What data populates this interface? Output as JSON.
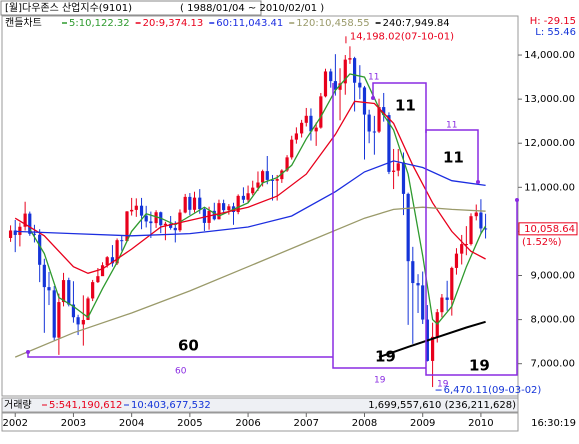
{
  "header": {
    "title": "[월]다우존스 산업지수(9101)",
    "range": "( 1988/01/04 ~ 2010/02/01 )",
    "h": "H: -29.15",
    "l": "L: 55.46",
    "time": "16:30:19"
  },
  "chart_data": {
    "type": "candlestick",
    "label": "캔들차트",
    "x": [
      2001.92,
      2002.0,
      2002.08,
      2002.17,
      2002.25,
      2002.33,
      2002.42,
      2002.5,
      2002.58,
      2002.67,
      2002.75,
      2002.83,
      2002.92,
      2003.0,
      2003.08,
      2003.17,
      2003.25,
      2003.33,
      2003.42,
      2003.5,
      2003.58,
      2003.67,
      2003.75,
      2003.83,
      2003.92,
      2004.0,
      2004.08,
      2004.17,
      2004.25,
      2004.33,
      2004.42,
      2004.5,
      2004.58,
      2004.67,
      2004.75,
      2004.83,
      2004.92,
      2005.0,
      2005.08,
      2005.17,
      2005.25,
      2005.33,
      2005.42,
      2005.5,
      2005.58,
      2005.67,
      2005.75,
      2005.83,
      2005.92,
      2006.0,
      2006.08,
      2006.17,
      2006.25,
      2006.33,
      2006.42,
      2006.5,
      2006.58,
      2006.67,
      2006.75,
      2006.83,
      2006.92,
      2007.0,
      2007.08,
      2007.17,
      2007.25,
      2007.33,
      2007.42,
      2007.5,
      2007.58,
      2007.67,
      2007.75,
      2007.83,
      2007.92,
      2008.0,
      2008.08,
      2008.17,
      2008.25,
      2008.33,
      2008.42,
      2008.5,
      2008.58,
      2008.67,
      2008.75,
      2008.83,
      2008.92,
      2009.0,
      2009.08,
      2009.17,
      2009.25,
      2009.33,
      2009.42,
      2009.5,
      2009.58,
      2009.67,
      2009.75,
      2009.83,
      2009.92,
      2010.0,
      2010.08
    ],
    "open": [
      9851,
      10021,
      9920,
      10106,
      10404,
      9946,
      9925,
      9243,
      8737,
      8664,
      7592,
      8397,
      8896,
      8342,
      8054,
      7891,
      7992,
      8480,
      8850,
      8985,
      9233,
      9415,
      9275,
      9801,
      9782,
      10454,
      10488,
      10583,
      10358,
      10226,
      10188,
      10435,
      10140,
      10174,
      10080,
      10027,
      10428,
      10783,
      10490,
      10766,
      10504,
      10193,
      10467,
      10275,
      10641,
      10482,
      10569,
      10440,
      10806,
      10718,
      10865,
      10993,
      11109,
      11367,
      11168,
      11150,
      11186,
      11381,
      11679,
      12081,
      12222,
      12463,
      12622,
      12269,
      12354,
      13063,
      13628,
      13409,
      13212,
      13358,
      13896,
      13930,
      13372,
      13265,
      12650,
      12266,
      12263,
      12820,
      12638,
      11350,
      11378,
      11544,
      10851,
      9325,
      8829,
      8776,
      8001,
      7063,
      7609,
      8168,
      8500,
      8447,
      9172,
      9496,
      9712,
      9713,
      10345,
      10428,
      10067
    ],
    "high": [
      10137,
      10260,
      10200,
      10673,
      10450,
      10150,
      10050,
      9380,
      9080,
      8760,
      8590,
      9060,
      8950,
      8870,
      8110,
      8550,
      8520,
      8900,
      9170,
      9300,
      9440,
      9690,
      9840,
      9900,
      10460,
      10760,
      10750,
      10760,
      10580,
      10450,
      10480,
      10450,
      10220,
      10350,
      10230,
      10500,
      10850,
      10870,
      10900,
      10960,
      10540,
      10560,
      10650,
      10720,
      10720,
      10620,
      10650,
      10840,
      11000,
      11040,
      11150,
      11360,
      11400,
      11710,
      11280,
      11280,
      11410,
      11730,
      12170,
      12360,
      12530,
      12800,
      12790,
      12470,
      13140,
      13690,
      13690,
      14020,
      13700,
      14000,
      14198.02,
      13960,
      13770,
      13300,
      12760,
      12620,
      13010,
      13140,
      12700,
      11870,
      11870,
      11790,
      10880,
      9650,
      9030,
      9090,
      8330,
      7930,
      8240,
      8580,
      8880,
      9200,
      9620,
      9920,
      10120,
      10410,
      10610,
      10730,
      10400
    ],
    "low": [
      9763,
      9530,
      9660,
      10020,
      9900,
      9750,
      8850,
      7700,
      8330,
      7530,
      7200,
      8300,
      8300,
      7930,
      7650,
      7410,
      7990,
      8420,
      8830,
      8990,
      9180,
      9200,
      9240,
      9560,
      9780,
      10360,
      10330,
      10050,
      10090,
      9850,
      10080,
      9960,
      9800,
      10040,
      9750,
      9990,
      10410,
      10370,
      10430,
      10400,
      10010,
      10040,
      10250,
      10270,
      10400,
      10380,
      10150,
      10390,
      10640,
      10660,
      10820,
      10920,
      11020,
      11070,
      10700,
      10700,
      11100,
      11350,
      11630,
      11990,
      12130,
      12380,
      12060,
      11940,
      12330,
      13040,
      13260,
      13080,
      12520,
      13100,
      13800,
      12720,
      13000,
      11630,
      12000,
      11740,
      12230,
      12490,
      11300,
      10960,
      11250,
      10370,
      7880,
      7450,
      8150,
      7900,
      7050,
      6470.11,
      7480,
      8050,
      8200,
      8090,
      9020,
      9250,
      9460,
      9680,
      10250,
      9950,
      9840
    ],
    "close": [
      10021,
      9920,
      10106,
      10404,
      9946,
      9925,
      9243,
      8737,
      8664,
      7592,
      8397,
      8896,
      8342,
      8054,
      7891,
      7992,
      8480,
      8850,
      8985,
      9233,
      9415,
      9275,
      9801,
      9782,
      10454,
      10488,
      10583,
      10358,
      10226,
      10188,
      10435,
      10140,
      10174,
      10080,
      10027,
      10428,
      10783,
      10490,
      10766,
      10504,
      10193,
      10467,
      10275,
      10641,
      10482,
      10569,
      10440,
      10806,
      10718,
      10865,
      10993,
      11109,
      11367,
      11168,
      11150,
      11186,
      11381,
      11679,
      12081,
      12222,
      12463,
      12622,
      12269,
      12354,
      13063,
      13628,
      13409,
      13212,
      13358,
      13896,
      13930,
      13372,
      13265,
      12650,
      12266,
      12263,
      12820,
      12638,
      11350,
      11378,
      11544,
      10851,
      9325,
      8829,
      8776,
      8001,
      7063,
      7609,
      8168,
      8500,
      8447,
      9172,
      9496,
      9712,
      9713,
      10345,
      10428,
      10067,
      10058.64
    ],
    "up_color": "#e8001c",
    "down_color": "#1434d8",
    "ma": [
      {
        "name": "5:10,122.32",
        "color": "#2e9a2e",
        "x": [
          2002.25,
          2002.5,
          2002.75,
          2003.0,
          2003.25,
          2003.5,
          2003.75,
          2004.0,
          2004.25,
          2004.5,
          2004.75,
          2005.0,
          2005.25,
          2005.5,
          2005.75,
          2006.0,
          2006.25,
          2006.5,
          2006.75,
          2007.0,
          2007.25,
          2007.5,
          2007.75,
          2008.0,
          2008.25,
          2008.5,
          2008.75,
          2009.0,
          2009.17,
          2009.25,
          2009.5,
          2009.75,
          2010.0,
          2010.08
        ],
        "values": [
          10050,
          9500,
          8500,
          8300,
          8050,
          8700,
          9300,
          10000,
          10400,
          10300,
          10150,
          10350,
          10550,
          10350,
          10500,
          10650,
          11100,
          11220,
          11500,
          12100,
          12600,
          13200,
          13570,
          13500,
          12800,
          12300,
          11300,
          9450,
          8000,
          7900,
          8300,
          9200,
          9950,
          10122.32
        ]
      },
      {
        "name": "20:9,374.13",
        "color": "#e8001c",
        "x": [
          2002.0,
          2002.5,
          2003.0,
          2003.25,
          2003.5,
          2004.0,
          2004.5,
          2005.0,
          2005.5,
          2006.0,
          2006.5,
          2007.0,
          2007.5,
          2007.83,
          2008.17,
          2008.5,
          2008.83,
          2009.17,
          2009.5,
          2009.83,
          2010.08
        ],
        "values": [
          10300,
          9900,
          9200,
          9050,
          9150,
          9600,
          10100,
          10250,
          10400,
          10550,
          10800,
          11300,
          12200,
          12950,
          12900,
          12450,
          11500,
          10650,
          10000,
          9550,
          9374.13
        ]
      },
      {
        "name": "60:11,043.41",
        "color": "#1c2ee0",
        "x": [
          2002.0,
          2003.0,
          2004.0,
          2005.0,
          2006.0,
          2006.75,
          2007.5,
          2008.0,
          2008.5,
          2009.0,
          2009.5,
          2010.08
        ],
        "values": [
          10000,
          9950,
          9900,
          9950,
          10100,
          10350,
          10900,
          11350,
          11600,
          11450,
          11150,
          11043.41
        ]
      },
      {
        "name": "120:10,458.55",
        "color": "#9a9a6a",
        "x": [
          2002.0,
          2003.0,
          2004.0,
          2005.0,
          2006.0,
          2007.0,
          2008.0,
          2008.5,
          2009.0,
          2009.5,
          2010.08
        ],
        "values": [
          7150,
          7700,
          8150,
          8650,
          9200,
          9750,
          10300,
          10500,
          10550,
          10500,
          10458.55
        ]
      },
      {
        "name": "240:7,949.84",
        "color": "#000000",
        "x": [
          2008.25,
          2008.75,
          2009.25,
          2009.75,
          2010.08
        ],
        "values": [
          7150,
          7380,
          7600,
          7820,
          7949.84
        ]
      }
    ],
    "xlim": [
      2001.79,
      2010.62
    ],
    "xticks": [
      2002,
      2003,
      2004,
      2005,
      2006,
      2007,
      2008,
      2009,
      2010
    ],
    "ylim": [
      6290,
      14840
    ],
    "yticks": [
      {
        "value": 7000,
        "label": "7,000.00"
      },
      {
        "value": 8000,
        "label": "8,000.00"
      },
      {
        "value": 9000,
        "label": "9,000.00"
      },
      {
        "value": 10000,
        "label": "10,000.00"
      },
      {
        "value": 11000,
        "label": "11,000.00"
      },
      {
        "value": 12000,
        "label": "12,000.00"
      },
      {
        "value": 13000,
        "label": "13,000.00"
      },
      {
        "value": 14000,
        "label": "14,000.00"
      }
    ],
    "high_note": {
      "x": 2007.75,
      "value": 14198.02,
      "label": "14,198.02(07-10-01)"
    },
    "low_note": {
      "x": 2009.17,
      "value": 6470.11,
      "label": "6,470.11(09-03-02)"
    },
    "last": {
      "value": 10058.64,
      "label": "10,058.64",
      "change": "(1.52%)"
    },
    "period_labels": [
      60,
      60,
      11,
      11,
      11,
      11,
      19,
      19,
      19,
      19
    ]
  },
  "volume": {
    "label": "거래량",
    "ma5": "5:541,190,612",
    "ma10": "10:403,677,532",
    "total": "1,699,557,610 (236,211,628)"
  }
}
